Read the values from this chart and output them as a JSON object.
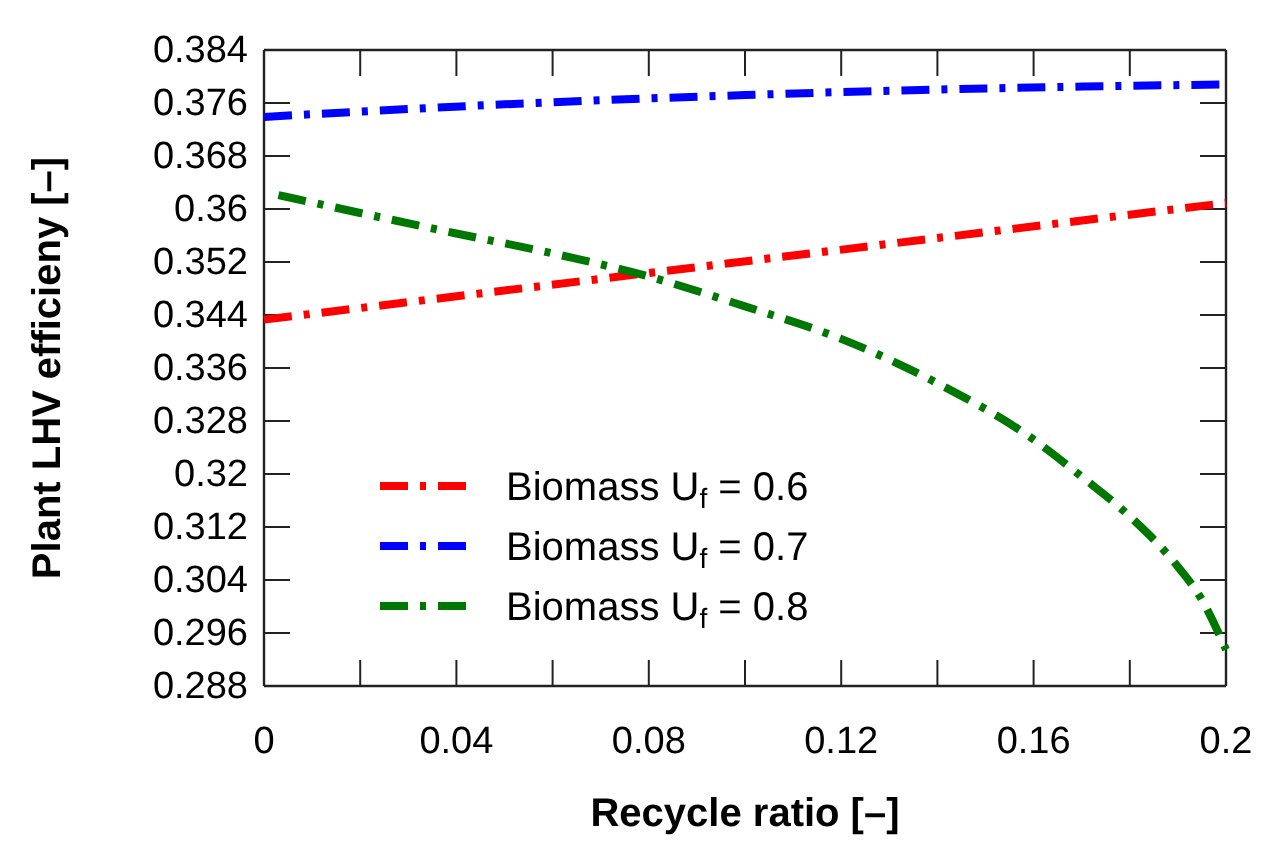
{
  "chart_data": {
    "type": "line",
    "xlabel": "Recycle ratio [–]",
    "ylabel": "Plant LHV efficieny [–]",
    "xlim": [
      0,
      0.2
    ],
    "ylim": [
      0.288,
      0.384
    ],
    "xticks": [
      0,
      {
        "value": 0.02,
        "label": null
      },
      0.04,
      {
        "value": 0.06,
        "label": null
      },
      0.08,
      {
        "value": 0.1,
        "label": null
      },
      0.12,
      {
        "value": 0.14,
        "label": null
      },
      0.16,
      {
        "value": 0.18,
        "label": null
      },
      0.2
    ],
    "yticks": [
      0.288,
      0.296,
      0.304,
      0.312,
      0.32,
      0.328,
      0.336,
      0.344,
      0.352,
      0.36,
      0.368,
      0.376,
      0.384
    ],
    "grid": false,
    "legend": "bottom left",
    "line_style": "dashdot",
    "marker": "none",
    "series": [
      {
        "name": "Biomass U$_{f}$ = 0.6",
        "color": "#ff0000",
        "x": [
          0,
          0.2
        ],
        "values": [
          0.3433,
          0.3609
        ]
      },
      {
        "name": "Biomass U$_{f}$ = 0.7",
        "color": "#0000ff",
        "x": [
          0,
          0.05,
          0.1,
          0.15,
          0.2
        ],
        "values": [
          0.3739,
          0.3758,
          0.3772,
          0.3782,
          0.3788
        ]
      },
      {
        "name": "Biomass U$_{f}$ = 0.8",
        "color": "#007700",
        "x": [
          0.003,
          0.02,
          0.04,
          0.06,
          0.08,
          0.1,
          0.12,
          0.14,
          0.16,
          0.17,
          0.18,
          0.19,
          0.195,
          0.2
        ],
        "values": [
          0.3621,
          0.3594,
          0.3563,
          0.3533,
          0.3498,
          0.3453,
          0.3404,
          0.3337,
          0.3252,
          0.3196,
          0.3136,
          0.306,
          0.301,
          0.2935
        ]
      }
    ]
  }
}
